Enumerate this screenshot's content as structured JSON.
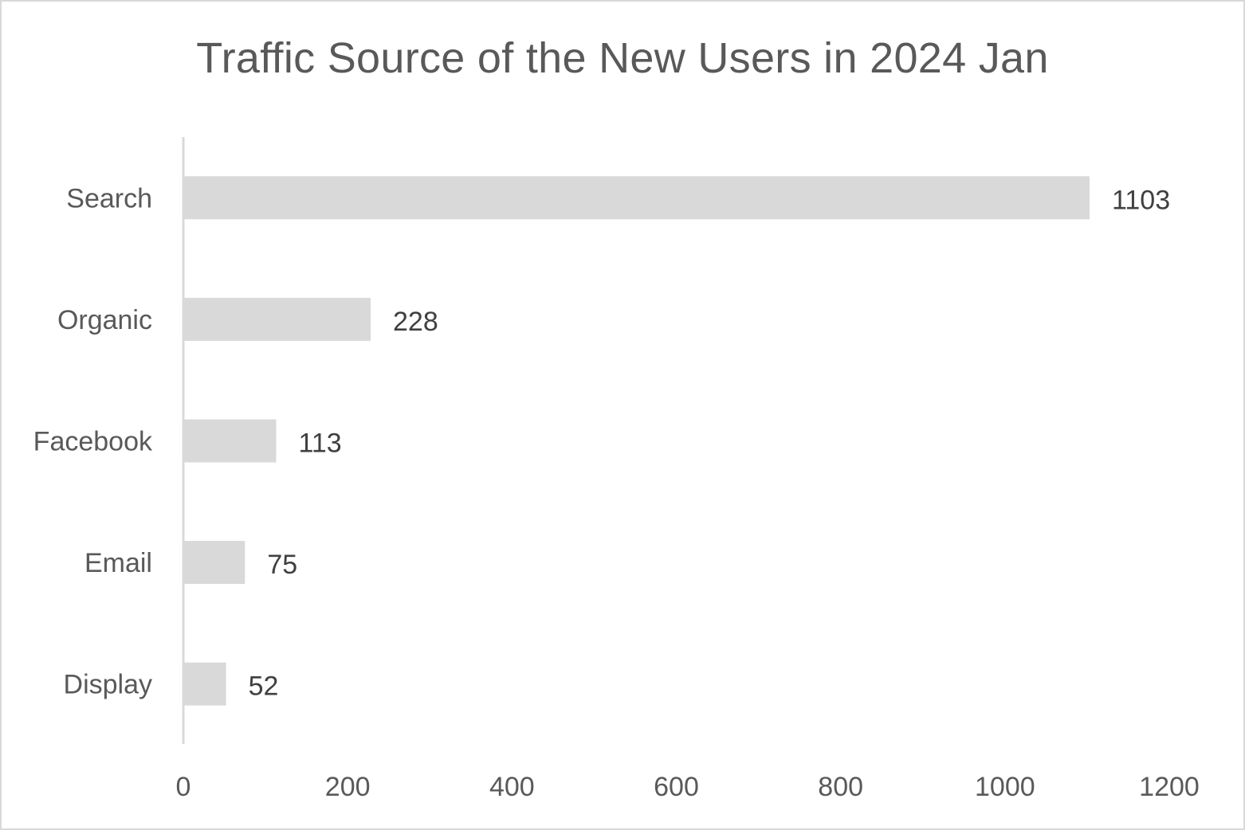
{
  "chart_data": {
    "type": "bar",
    "orientation": "horizontal",
    "title": "Traffic Source of the New Users in 2024 Jan",
    "categories": [
      "Search",
      "Organic",
      "Facebook",
      "Email",
      "Display"
    ],
    "values": [
      1103,
      228,
      113,
      75,
      52
    ],
    "xlim": [
      0,
      1200
    ],
    "xticks": [
      0,
      200,
      400,
      600,
      800,
      1000,
      1200
    ],
    "grid": false,
    "legend": "none",
    "data_labels": true,
    "colors": {
      "bar": "#d9d9d9",
      "axis": "#d9d9d9",
      "text": "#595959",
      "data_label": "#404040"
    }
  }
}
